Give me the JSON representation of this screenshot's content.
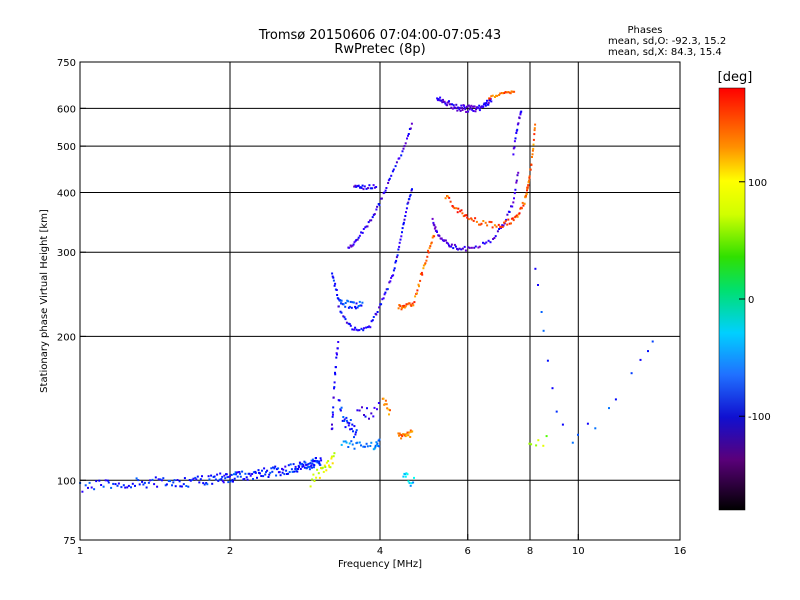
{
  "chart_data": {
    "type": "scatter",
    "title": "Tromsø 20150606 07:04:00-07:05:43",
    "subtitle": "RwPretec (8p)",
    "xlabel": "Frequency [MHz]",
    "ylabel": "Stationary phase Virtual Height [km]",
    "x_scale": "log",
    "y_scale": "log",
    "xlim": [
      1,
      16
    ],
    "ylim": [
      75,
      750
    ],
    "x_ticks": [
      1,
      2,
      4,
      6,
      8,
      10,
      16
    ],
    "x_tick_labels": [
      "1",
      "2",
      "4",
      "6",
      "8",
      "10",
      "16"
    ],
    "y_ticks": [
      75,
      100,
      200,
      300,
      400,
      500,
      600,
      750
    ],
    "y_tick_labels": [
      "75",
      "100",
      "200",
      "300",
      "400",
      "500",
      "600",
      "750"
    ],
    "grid": true,
    "stats": {
      "heading": "Phases",
      "line_o": "mean, sd,O: -92.3, 15.2",
      "line_x": "mean, sd,X:  84.3, 15.4"
    },
    "colorbar": {
      "label": "[deg]",
      "range": [
        -180,
        180
      ],
      "ticks": [
        100,
        0,
        -100
      ],
      "tick_labels": [
        "100",
        "0",
        "-100"
      ]
    },
    "series": [
      {
        "segments": [
          {
            "f": [
              1.0,
              1.3,
              1.6,
              1.9,
              2.1,
              2.4,
              2.7,
              2.9,
              3.05
            ],
            "h": [
              97,
              99,
              99,
              101,
              102,
              104,
              106,
              108,
              110
            ],
            "phase": -95,
            "spread_h": 2.5,
            "n": 220
          },
          {
            "f": [
              2.9,
              3.05,
              3.15,
              3.25
            ],
            "h": [
              100,
              104,
              108,
              112
            ],
            "phase": 45,
            "spread_h": 3,
            "n": 25
          },
          {
            "f": [
              3.2,
              3.22,
              3.24,
              3.27,
              3.3
            ],
            "h": [
              125,
              140,
              160,
              180,
              195
            ],
            "phase": -105,
            "spread_h": 3,
            "n": 22
          },
          {
            "f": [
              3.3,
              3.4,
              3.5,
              3.6
            ],
            "h": [
              145,
              135,
              130,
              128
            ],
            "phase": -95,
            "spread_h": 6,
            "n": 25
          },
          {
            "f": [
              3.35,
              3.6,
              3.9,
              4.0
            ],
            "h": [
              120,
              118,
              118,
              120
            ],
            "phase": -75,
            "spread_h": 2,
            "n": 30
          },
          {
            "f": [
              3.6,
              3.8,
              4.0
            ],
            "h": [
              140,
              138,
              142
            ],
            "phase": -110,
            "spread_h": 4,
            "n": 12
          },
          {
            "f": [
              3.2,
              3.25,
              3.3,
              3.35
            ],
            "h": [
              270,
              255,
              240,
              235
            ],
            "phase": -100,
            "spread_h": 3,
            "n": 15
          },
          {
            "f": [
              3.3,
              3.5,
              3.7
            ],
            "h": [
              235,
              233,
              232
            ],
            "phase": -90,
            "spread_h": 4,
            "n": 25
          },
          {
            "f": [
              3.3,
              3.45,
              3.6,
              3.8,
              3.95,
              4.1,
              4.25,
              4.35,
              4.45,
              4.55,
              4.65
            ],
            "h": [
              230,
              212,
              205,
              208,
              225,
              245,
              270,
              300,
              340,
              380,
              410
            ],
            "phase": -105,
            "spread_h": 2,
            "n": 70
          },
          {
            "f": [
              3.45,
              3.6,
              3.8,
              4.0,
              4.2,
              4.45,
              4.65
            ],
            "h": [
              305,
              320,
              345,
              380,
              430,
              490,
              560
            ],
            "phase": -110,
            "spread_h": 3,
            "n": 55
          },
          {
            "f": [
              3.55,
              3.7,
              3.95
            ],
            "h": [
              410,
              410,
              412
            ],
            "phase": -110,
            "spread_h": 4,
            "n": 20
          },
          {
            "f": [
              4.35,
              4.5,
              4.7
            ],
            "h": [
              230,
              232,
              234
            ],
            "phase": 85,
            "spread_h": 3,
            "n": 20
          },
          {
            "f": [
              4.7,
              4.85,
              5.0,
              5.15
            ],
            "h": [
              240,
              270,
              300,
              330
            ],
            "phase": 80,
            "spread_h": 4,
            "n": 25
          },
          {
            "f": [
              4.35,
              4.5,
              4.65
            ],
            "h": [
              125,
              123,
              126
            ],
            "phase": 75,
            "spread_h": 2,
            "n": 22
          },
          {
            "f": [
              4.05,
              4.12,
              4.2
            ],
            "h": [
              148,
              142,
              138
            ],
            "phase": 70,
            "spread_h": 4,
            "n": 10
          },
          {
            "f": [
              4.45,
              4.55,
              4.7
            ],
            "h": [
              102,
              100,
              98
            ],
            "phase": -60,
            "spread_h": 3,
            "n": 12
          },
          {
            "f": [
              5.1,
              5.2,
              5.35,
              5.55,
              5.8,
              6.2,
              6.7,
              7.1,
              7.4,
              7.6
            ],
            "h": [
              350,
              330,
              318,
              310,
              305,
              306,
              318,
              345,
              380,
              450
            ],
            "phase": -115,
            "spread_h": 3,
            "n": 70
          },
          {
            "f": [
              5.4,
              5.7,
              6.0,
              6.4,
              6.9,
              7.3,
              7.6,
              7.85,
              8.0
            ],
            "h": [
              395,
              370,
              355,
              345,
              340,
              348,
              360,
              390,
              440
            ],
            "phase": 85,
            "spread_h": 5,
            "n": 70
          },
          {
            "f": [
              7.8,
              7.95,
              8.1,
              8.2
            ],
            "h": [
              380,
              420,
              480,
              560
            ],
            "phase": 80,
            "spread_h": 5,
            "n": 25
          },
          {
            "f": [
              7.4,
              7.55,
              7.7
            ],
            "h": [
              480,
              550,
              600
            ],
            "phase": -110,
            "spread_h": 5,
            "n": 15
          },
          {
            "f": [
              5.2,
              5.5,
              5.8,
              6.1,
              6.4,
              6.7
            ],
            "h": [
              630,
              612,
              600,
              598,
              605,
              625
            ],
            "phase": -115,
            "spread_h": 10,
            "n": 80
          },
          {
            "f": [
              6.6,
              6.9,
              7.2,
              7.45
            ],
            "h": [
              630,
              640,
              648,
              650
            ],
            "phase": 80,
            "spread_h": 4,
            "n": 20
          },
          {
            "f": [
              8.2,
              8.4,
              8.6,
              9.0,
              9.6,
              10.2,
              11.2,
              12.5,
              13.6,
              14.6
            ],
            "h": [
              280,
              230,
              190,
              140,
              122,
              125,
              135,
              160,
              180,
              205
            ],
            "phase": -90,
            "spread_h": 4,
            "n": 18
          },
          {
            "f": [
              7.9,
              8.3,
              8.7
            ],
            "h": [
              118,
              120,
              122
            ],
            "phase": 30,
            "spread_h": 3,
            "n": 6
          }
        ]
      }
    ]
  }
}
